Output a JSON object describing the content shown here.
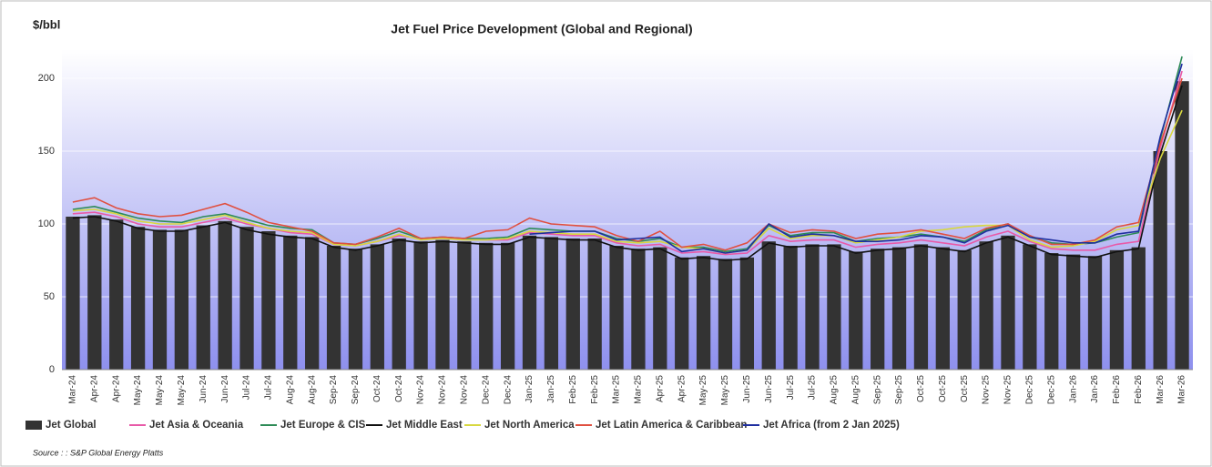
{
  "chart_data": {
    "type": "bar",
    "title": "Jet Fuel Price Development (Global and Regional)",
    "y_label": "$/bbl",
    "source": "Source : : S&P Global Energy Platts",
    "categories": [
      "Mar-24",
      "Apr-24",
      "Apr-24",
      "May-24",
      "May-24",
      "May-24",
      "Jun-24",
      "Jun-24",
      "Jul-24",
      "Jul-24",
      "Aug-24",
      "Aug-24",
      "Sep-24",
      "Sep-24",
      "Oct-24",
      "Oct-24",
      "Nov-24",
      "Nov-24",
      "Nov-24",
      "Dec-24",
      "Dec-24",
      "Jan-25",
      "Jan-25",
      "Feb-25",
      "Feb-25",
      "Mar-25",
      "Mar-25",
      "Apr-25",
      "Apr-25",
      "May-25",
      "May-25",
      "Jun-25",
      "Jun-25",
      "Jul-25",
      "Jul-25",
      "Aug-25",
      "Aug-25",
      "Sep-25",
      "Sep-25",
      "Oct-25",
      "Oct-25",
      "Oct-25",
      "Nov-25",
      "Nov-25",
      "Dec-25",
      "Dec-25",
      "Jan-26",
      "Jan-26",
      "Feb-26",
      "Feb-26",
      "Mar-26",
      "Mar-26"
    ],
    "series": [
      {
        "name": "Jet Global",
        "type": "bar",
        "color": "#333333",
        "values": [
          105,
          106,
          103,
          98,
          96,
          96,
          99,
          102,
          98,
          95,
          92,
          91,
          85,
          83,
          86,
          90,
          88,
          89,
          88,
          87,
          87,
          92,
          91,
          90,
          90,
          85,
          83,
          84,
          77,
          78,
          76,
          77,
          88,
          85,
          86,
          86,
          81,
          83,
          84,
          86,
          84,
          82,
          88,
          92,
          86,
          80,
          79,
          78,
          82,
          84,
          150,
          198
        ]
      },
      {
        "name": "Jet Asia & Oceania",
        "type": "line",
        "color": "#e85aa8",
        "values": [
          107,
          108,
          105,
          100,
          98,
          98,
          101,
          104,
          100,
          97,
          94,
          93,
          86,
          85,
          88,
          92,
          90,
          91,
          90,
          89,
          89,
          94,
          93,
          92,
          92,
          87,
          85,
          86,
          80,
          81,
          79,
          80,
          92,
          88,
          89,
          89,
          84,
          86,
          87,
          89,
          87,
          85,
          91,
          95,
          88,
          83,
          82,
          82,
          86,
          88,
          152,
          205
        ]
      },
      {
        "name": "Jet Europe & CIS",
        "type": "line",
        "color": "#2e8b57",
        "values": [
          110,
          112,
          108,
          104,
          102,
          101,
          105,
          107,
          103,
          99,
          97,
          96,
          87,
          86,
          90,
          95,
          90,
          91,
          90,
          90,
          91,
          97,
          96,
          95,
          95,
          90,
          88,
          90,
          84,
          84,
          81,
          83,
          99,
          92,
          94,
          94,
          88,
          90,
          91,
          93,
          91,
          88,
          96,
          100,
          91,
          87,
          86,
          87,
          91,
          94,
          158,
          215
        ]
      },
      {
        "name": "Jet Middle East",
        "type": "line",
        "color": "#111111",
        "values": [
          104,
          105,
          102,
          97,
          95,
          95,
          98,
          101,
          96,
          93,
          91,
          90,
          84,
          82,
          85,
          89,
          87,
          88,
          87,
          86,
          86,
          91,
          90,
          89,
          89,
          84,
          82,
          83,
          76,
          77,
          75,
          76,
          87,
          84,
          85,
          85,
          80,
          82,
          83,
          85,
          83,
          81,
          87,
          91,
          85,
          79,
          78,
          77,
          81,
          83,
          148,
          195
        ]
      },
      {
        "name": "Jet North America",
        "type": "line",
        "color": "#d8d840",
        "values": [
          109,
          110,
          107,
          102,
          100,
          100,
          103,
          106,
          101,
          97,
          95,
          94,
          86,
          85,
          88,
          93,
          89,
          90,
          89,
          89,
          90,
          95,
          94,
          93,
          93,
          88,
          87,
          88,
          84,
          83,
          80,
          82,
          97,
          90,
          92,
          92,
          87,
          89,
          91,
          95,
          96,
          98,
          99,
          99,
          89,
          84,
          85,
          88,
          96,
          99,
          145,
          178
        ]
      },
      {
        "name": "Jet Latin America & Caribbean",
        "type": "line",
        "color": "#e05040",
        "values": [
          115,
          118,
          111,
          107,
          105,
          106,
          110,
          114,
          108,
          101,
          98,
          95,
          87,
          86,
          91,
          97,
          90,
          91,
          90,
          95,
          96,
          104,
          100,
          99,
          98,
          92,
          88,
          95,
          84,
          86,
          82,
          87,
          100,
          94,
          96,
          95,
          90,
          93,
          94,
          96,
          93,
          90,
          97,
          100,
          92,
          86,
          86,
          89,
          98,
          101,
          155,
          200
        ]
      },
      {
        "name": "Jet Africa (from 2 Jan 2025)",
        "type": "line",
        "color": "#1f2fa0",
        "values": [
          null,
          null,
          null,
          null,
          null,
          null,
          null,
          null,
          null,
          null,
          null,
          null,
          null,
          null,
          null,
          null,
          null,
          null,
          null,
          null,
          null,
          93,
          94,
          95,
          95,
          89,
          90,
          91,
          81,
          83,
          80,
          82,
          100,
          91,
          93,
          92,
          88,
          88,
          89,
          92,
          91,
          87,
          95,
          99,
          91,
          89,
          87,
          87,
          93,
          95,
          160,
          210
        ]
      }
    ],
    "ylim": [
      0,
      220
    ],
    "yticks": [
      0,
      50,
      100,
      150,
      200
    ],
    "grid": true,
    "legend": "bottom"
  }
}
